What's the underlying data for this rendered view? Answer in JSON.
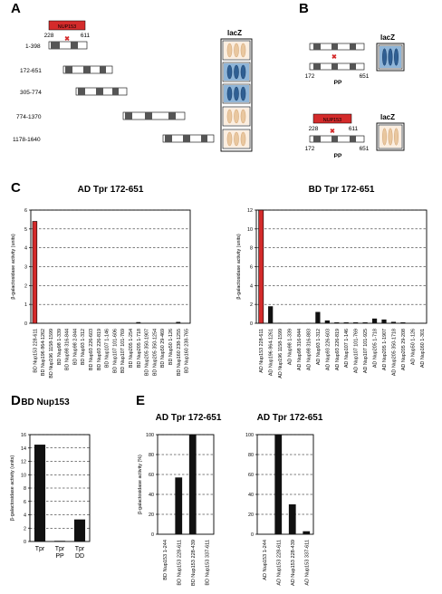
{
  "panels": {
    "A": "A",
    "B": "B",
    "C": "C",
    "D": "D",
    "E": "E"
  },
  "panel_a": {
    "nup_label": "NUP153",
    "nup_start": "228",
    "nup_end": "611",
    "lacz_label": "lacZ",
    "constructs": [
      "1-398",
      "172-651",
      "305-774",
      "774-1370",
      "1178-1640"
    ],
    "lacz_strength": [
      0.1,
      0.95,
      0.85,
      0.1,
      0.1
    ]
  },
  "panel_b": {
    "lacz_label": "lacZ",
    "top_left": "172",
    "top_right": "651",
    "top_mut": "PP",
    "nup_label": "NUP153",
    "nup_start": "228",
    "nup_end": "611",
    "bot_left": "172",
    "bot_right": "651",
    "bot_mut": "PP",
    "lacz_strength": [
      0.9,
      0.1
    ]
  },
  "colors": {
    "highlight": "#d42b2b",
    "bar": "#111111",
    "box": "#555555"
  },
  "chart_data": [
    {
      "type": "bar",
      "title": "AD Tpr 172-651",
      "ylabel": "β-galactosidase activity (units)",
      "ylim": [
        0,
        6
      ],
      "yticks": [
        "0",
        "1",
        "2",
        "3",
        "4",
        "5",
        "6"
      ],
      "categories": [
        "BD Nup153 228-611",
        "BD Nup196 864-1262",
        "BD Nup196 1158-1599",
        "BD Nup98 1-339",
        "BD Nup98 316-844",
        "BD Nup98 2-844",
        "BD Nup93 1-312",
        "BD Nup93 226-603",
        "BD Nup93 226-819",
        "BD Nup107 1-146",
        "BD Nup107 101-606",
        "BD Nup107 101-769",
        "BD Nup205 1-254",
        "BD Nup205 1-718",
        "BD Nup205 350-1907",
        "BD Nup205 350-1254",
        "BD Nup50 29-469",
        "BD Nup50 1-126",
        "BD Nup160 238-1255",
        "BD Nup160 238-765"
      ],
      "values": [
        5.4,
        0.02,
        0.02,
        0.01,
        0.01,
        0.01,
        0.01,
        0.01,
        0.01,
        0.01,
        0.01,
        0.01,
        0.01,
        0.06,
        0.01,
        0.01,
        0.01,
        0.01,
        0.07,
        0.01
      ],
      "highlight_index": 0,
      "grid": true
    },
    {
      "type": "bar",
      "title": "BD Tpr 172-651",
      "ylabel": "β-galactosidase activity (units)",
      "ylim": [
        0,
        12
      ],
      "yticks": [
        "0",
        "2",
        "4",
        "6",
        "8",
        "10",
        "12"
      ],
      "categories": [
        "AD Nup153 228-611",
        "AD Nup196 864-1261",
        "AD Nup196 1158-1599",
        "AD Nup98 1-339",
        "AD Nup98 316-844",
        "AD Nup98 316-883",
        "AD Nup93 1-312",
        "AD Nup93 226-603",
        "AD Nup93 226-819",
        "AD Nup107 1-146",
        "AD Nup107 101-769",
        "AD Nup107 101-925",
        "AD Nup205 1-718",
        "AD Nup205 1-1907",
        "AD Nup205 350-1718",
        "AD Nup205 29-208",
        "AD Nup50 1-126",
        "AD Nup160 1-301"
      ],
      "values": [
        12,
        1.8,
        0.05,
        0.05,
        0.05,
        0.05,
        1.2,
        0.3,
        0.1,
        0.1,
        0.1,
        0.1,
        0.5,
        0.4,
        0.15,
        0.1,
        0.05,
        0.05
      ],
      "highlight_index": 0,
      "grid": true
    },
    {
      "type": "bar",
      "title": "BD Nup153",
      "ylabel": "β-galactosidase activity (units)",
      "ylim": [
        0,
        16
      ],
      "yticks": [
        "0",
        "2",
        "4",
        "6",
        "8",
        "10",
        "12",
        "14",
        "16"
      ],
      "categories": [
        "Tpr",
        "Tpr\nPP",
        "Tpr\nDD"
      ],
      "values": [
        14.5,
        0.1,
        3.3
      ],
      "grid": true
    },
    {
      "type": "bar",
      "title": "AD Tpr 172-651",
      "ylabel": "β-galactosidase activity (%)",
      "ylim": [
        0,
        100
      ],
      "yticks": [
        "0",
        "20",
        "40",
        "60",
        "80",
        "100"
      ],
      "categories": [
        "BD Nup153 1-244",
        "BD Nup153 228-611",
        "BD Nup153 228-439",
        "BD Nup153 337-611"
      ],
      "values": [
        0,
        57,
        100,
        0
      ],
      "grid": true
    },
    {
      "type": "bar",
      "title": "AD Tpr 172-651",
      "ylabel": "",
      "ylim": [
        0,
        100
      ],
      "yticks": [
        "0",
        "20",
        "40",
        "60",
        "80",
        "100"
      ],
      "categories": [
        "AD Nup153 1-244",
        "AD Nup153 228-611",
        "AD Nup153 228-439",
        "AD Nup153 337-611"
      ],
      "values": [
        0,
        100,
        30,
        3
      ],
      "grid": true
    }
  ]
}
